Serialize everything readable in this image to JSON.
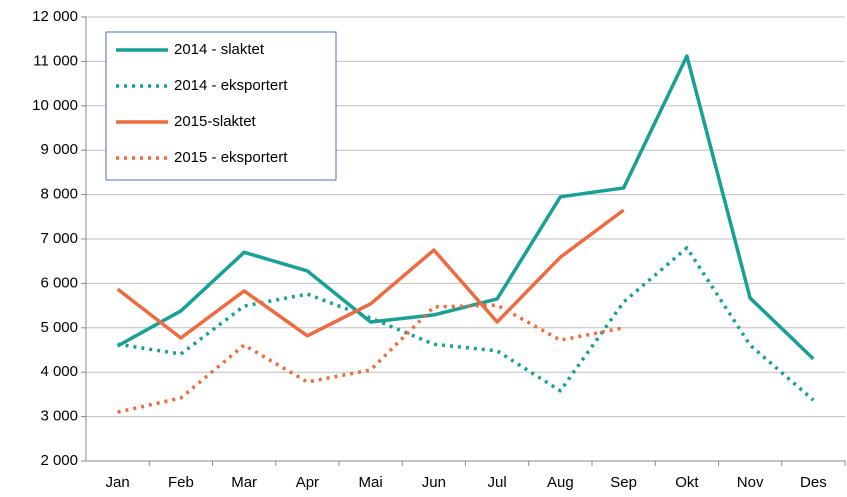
{
  "chart_data": {
    "type": "line",
    "categories": [
      "Jan",
      "Feb",
      "Mar",
      "Apr",
      "Mai",
      "Jun",
      "Jul",
      "Aug",
      "Sep",
      "Okt",
      "Nov",
      "Des"
    ],
    "series": [
      {
        "name": "2014 - slaktet",
        "color": "#17a096",
        "line_style": "solid",
        "values": [
          4590,
          5380,
          6700,
          6280,
          5130,
          5290,
          5650,
          7950,
          8150,
          11120,
          5670,
          4300
        ]
      },
      {
        "name": "2014 - eksportert",
        "color": "#17a096",
        "line_style": "dotted",
        "values": [
          4630,
          4410,
          5490,
          5760,
          5220,
          4630,
          4480,
          3580,
          5580,
          6800,
          4610,
          3370
        ]
      },
      {
        "name": "2015-slaktet",
        "color": "#ee6a3f",
        "line_style": "solid",
        "values": [
          5870,
          4770,
          5830,
          4820,
          5540,
          6750,
          5130,
          6590,
          7650,
          null,
          null,
          null
        ]
      },
      {
        "name": "2015 - eksportert",
        "color": "#ee6a3f",
        "line_style": "dotted",
        "values": [
          3100,
          3420,
          4610,
          3780,
          4050,
          5470,
          5510,
          4720,
          5000,
          null,
          null,
          null
        ]
      }
    ],
    "ylim": [
      2000,
      12000
    ],
    "yticks": [
      {
        "value": 2000,
        "label": "2 000"
      },
      {
        "value": 3000,
        "label": "3 000"
      },
      {
        "value": 4000,
        "label": "4 000"
      },
      {
        "value": 5000,
        "label": "5 000"
      },
      {
        "value": 6000,
        "label": "6 000"
      },
      {
        "value": 7000,
        "label": "7 000"
      },
      {
        "value": 8000,
        "label": "8 000"
      },
      {
        "value": 9000,
        "label": "9 000"
      },
      {
        "value": 10000,
        "label": "10 000"
      },
      {
        "value": 11000,
        "label": "11 000"
      },
      {
        "value": 12000,
        "label": "12 000"
      }
    ],
    "grid": true,
    "legend": "top-left"
  }
}
